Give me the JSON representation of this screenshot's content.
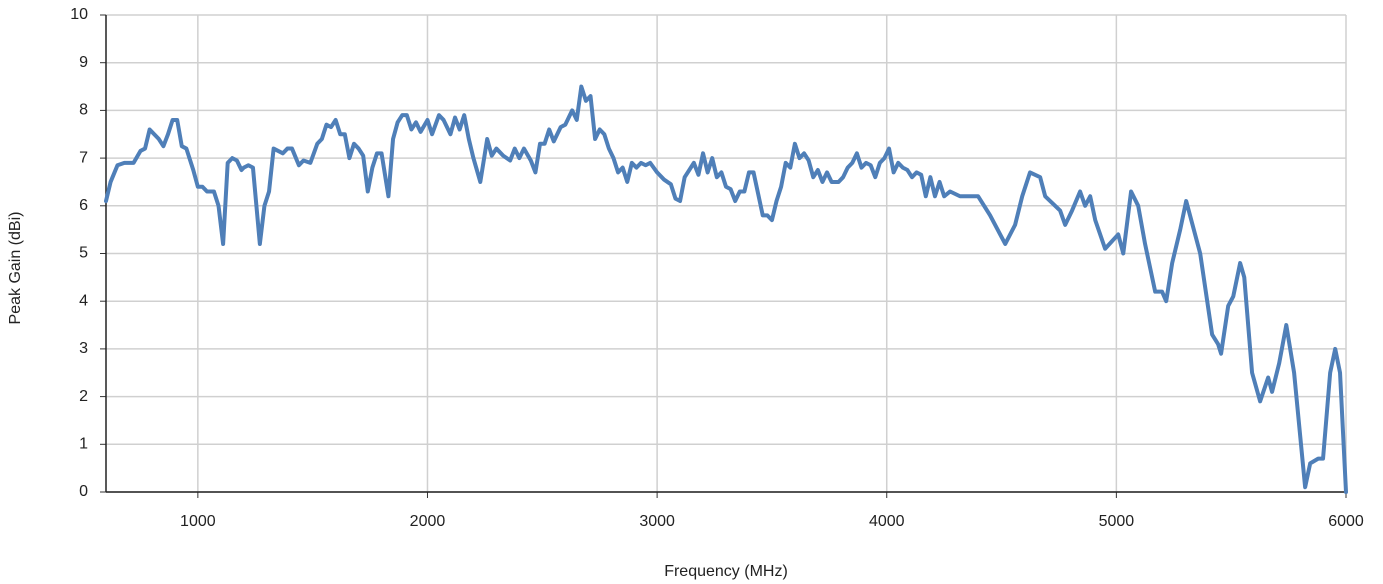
{
  "chart_data": {
    "type": "line",
    "x_label": "Frequency (MHz)",
    "y_label": "Peak Gain (dBi)",
    "color": "#4f7fb8",
    "grid": true,
    "xlim": [
      600,
      6000
    ],
    "xticks": [
      1000,
      2000,
      3000,
      4000,
      5000,
      6000
    ],
    "ylim": [
      0,
      10
    ],
    "yticks": [
      0,
      1,
      2,
      3,
      4,
      5,
      6,
      7,
      8,
      9,
      10
    ],
    "x": [
      600,
      620,
      650,
      680,
      720,
      750,
      770,
      790,
      810,
      830,
      850,
      870,
      890,
      910,
      930,
      950,
      980,
      1000,
      1020,
      1040,
      1070,
      1090,
      1110,
      1130,
      1150,
      1170,
      1190,
      1200,
      1220,
      1240,
      1270,
      1290,
      1310,
      1330,
      1350,
      1370,
      1390,
      1410,
      1440,
      1460,
      1490,
      1520,
      1540,
      1560,
      1580,
      1600,
      1620,
      1640,
      1660,
      1680,
      1700,
      1720,
      1740,
      1760,
      1780,
      1800,
      1830,
      1850,
      1870,
      1890,
      1910,
      1930,
      1950,
      1970,
      2000,
      2020,
      2050,
      2070,
      2100,
      2120,
      2140,
      2160,
      2180,
      2200,
      2230,
      2260,
      2280,
      2300,
      2330,
      2360,
      2380,
      2400,
      2420,
      2450,
      2470,
      2490,
      2510,
      2530,
      2550,
      2580,
      2600,
      2630,
      2650,
      2670,
      2690,
      2710,
      2730,
      2750,
      2770,
      2790,
      2810,
      2830,
      2850,
      2870,
      2890,
      2910,
      2930,
      2950,
      2970,
      3000,
      3030,
      3060,
      3080,
      3100,
      3120,
      3140,
      3160,
      3180,
      3200,
      3220,
      3240,
      3260,
      3280,
      3300,
      3320,
      3340,
      3360,
      3380,
      3400,
      3420,
      3440,
      3460,
      3480,
      3500,
      3520,
      3540,
      3560,
      3580,
      3600,
      3620,
      3640,
      3660,
      3680,
      3700,
      3720,
      3740,
      3760,
      3790,
      3810,
      3830,
      3850,
      3870,
      3890,
      3910,
      3930,
      3950,
      3970,
      3990,
      4010,
      4030,
      4050,
      4070,
      4090,
      4110,
      4130,
      4150,
      4170,
      4190,
      4210,
      4230,
      4250,
      4276,
      4319,
      4398,
      4450,
      4494,
      4516,
      4559,
      4590,
      4624,
      4668,
      4690,
      4755,
      4777,
      4807,
      4842,
      4864,
      4886,
      4908,
      4951,
      5008,
      5030,
      5064,
      5095,
      5125,
      5169,
      5199,
      5217,
      5243,
      5278,
      5304,
      5365,
      5417,
      5443,
      5456,
      5487,
      5509,
      5539,
      5557,
      5591,
      5626,
      5661,
      5678,
      5709,
      5740,
      5774,
      5822,
      5844,
      5879,
      5900,
      5931,
      5953,
      5974,
      6000
    ],
    "values": [
      6.1,
      6.5,
      6.85,
      6.9,
      6.9,
      7.15,
      7.2,
      7.6,
      7.5,
      7.4,
      7.25,
      7.5,
      7.8,
      7.8,
      7.25,
      7.2,
      6.75,
      6.4,
      6.4,
      6.3,
      6.3,
      6.0,
      5.2,
      6.9,
      7.0,
      6.95,
      6.75,
      6.8,
      6.85,
      6.8,
      5.2,
      6.0,
      6.3,
      7.2,
      7.15,
      7.1,
      7.2,
      7.2,
      6.85,
      6.95,
      6.9,
      7.3,
      7.4,
      7.7,
      7.65,
      7.8,
      7.5,
      7.5,
      7.0,
      7.3,
      7.2,
      7.05,
      6.3,
      6.8,
      7.1,
      7.1,
      6.2,
      7.4,
      7.75,
      7.9,
      7.9,
      7.6,
      7.75,
      7.55,
      7.8,
      7.5,
      7.9,
      7.8,
      7.5,
      7.85,
      7.6,
      7.9,
      7.4,
      7.0,
      6.5,
      7.4,
      7.05,
      7.2,
      7.05,
      6.95,
      7.2,
      7.0,
      7.2,
      6.95,
      6.7,
      7.3,
      7.3,
      7.6,
      7.35,
      7.65,
      7.7,
      8.0,
      7.8,
      8.5,
      8.2,
      8.3,
      7.4,
      7.6,
      7.5,
      7.2,
      7.0,
      6.7,
      6.8,
      6.5,
      6.9,
      6.8,
      6.9,
      6.85,
      6.9,
      6.7,
      6.55,
      6.45,
      6.15,
      6.1,
      6.6,
      6.75,
      6.9,
      6.65,
      7.1,
      6.7,
      7.0,
      6.6,
      6.7,
      6.4,
      6.35,
      6.1,
      6.3,
      6.3,
      6.7,
      6.7,
      6.25,
      5.8,
      5.8,
      5.7,
      6.1,
      6.4,
      6.9,
      6.8,
      7.3,
      7.0,
      7.1,
      6.95,
      6.6,
      6.75,
      6.5,
      6.7,
      6.5,
      6.5,
      6.6,
      6.8,
      6.9,
      7.1,
      6.8,
      6.9,
      6.85,
      6.6,
      6.9,
      7.0,
      7.2,
      6.7,
      6.9,
      6.8,
      6.75,
      6.6,
      6.7,
      6.65,
      6.2,
      6.6,
      6.2,
      6.5,
      6.2,
      6.3,
      6.2,
      6.2,
      5.8,
      5.4,
      5.2,
      5.6,
      6.2,
      6.7,
      6.6,
      6.2,
      5.9,
      5.6,
      5.9,
      6.3,
      6.0,
      6.2,
      5.7,
      5.1,
      5.4,
      5.0,
      6.3,
      6.0,
      5.2,
      4.2,
      4.2,
      4.0,
      4.8,
      5.5,
      6.1,
      5.0,
      3.3,
      3.1,
      2.9,
      3.9,
      4.1,
      4.8,
      4.5,
      2.5,
      1.9,
      2.4,
      2.1,
      2.7,
      3.5,
      2.5,
      0.1,
      0.6,
      0.7,
      0.7,
      2.5,
      3.0,
      2.5,
      0
    ]
  }
}
